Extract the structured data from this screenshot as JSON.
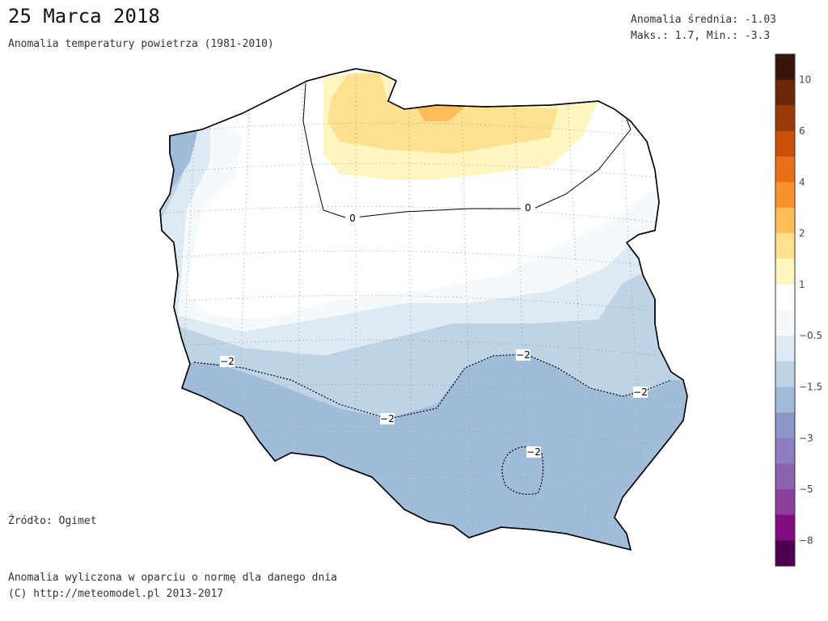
{
  "header": {
    "title": "25 Marca 2018",
    "subtitle": "Anomalia temperatury powietrza (1981-2010)",
    "stats": [
      "Anomalia średnia: -1.03",
      "Maks.: 1.7, Min.: -3.3"
    ]
  },
  "map": {
    "contour_labels": [
      "0",
      "0",
      "−2",
      "−2",
      "−2",
      "−2",
      "−2"
    ]
  },
  "colorbar": {
    "colors": [
      "#3b1408",
      "#692809",
      "#993a0b",
      "#c84f0c",
      "#e8701a",
      "#f9922d",
      "#fdbd57",
      "#fee08f",
      "#fff5c0",
      "#ffffff",
      "#f4f9fb",
      "#deeaf3",
      "#bfd3e6",
      "#9fbbd9",
      "#8c96c6",
      "#8c7ec0",
      "#8c62ab",
      "#8a3f9c",
      "#7f0f7e",
      "#4d004b"
    ],
    "labels": [
      "10",
      "6",
      "4",
      "2",
      "1",
      "−0.5",
      "−1.5",
      "−3",
      "−5",
      "−8"
    ]
  },
  "footer": {
    "source": "Źródło: Ogimet",
    "note": "Anomalia wyliczona w oparciu o normę dla danego dnia",
    "copyright": "(C) http://meteomodel.pl 2013-2017"
  }
}
